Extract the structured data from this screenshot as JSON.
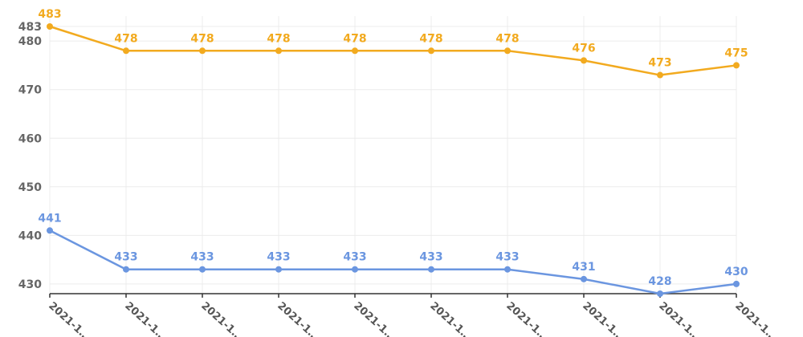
{
  "chart_data": {
    "type": "line",
    "categories": [
      "2021-1…",
      "2021-1…",
      "2021-1…",
      "2021-1…",
      "2021-1…",
      "2021-1…",
      "2021-1…",
      "2021-1…",
      "2021-1…",
      "2021-1…"
    ],
    "series": [
      {
        "values": [
          483,
          478,
          478,
          478,
          478,
          478,
          478,
          476,
          473,
          475
        ],
        "color": "#F2AA1F"
      },
      {
        "values": [
          441,
          433,
          433,
          433,
          433,
          433,
          433,
          431,
          428,
          430
        ],
        "color": "#6B96E0"
      }
    ],
    "yticks": [
      430,
      440,
      450,
      460,
      470,
      480,
      483
    ],
    "ylim": [
      428,
      483
    ],
    "grid": true,
    "axis_color": "#333333",
    "grid_color": "#ECECEC"
  }
}
